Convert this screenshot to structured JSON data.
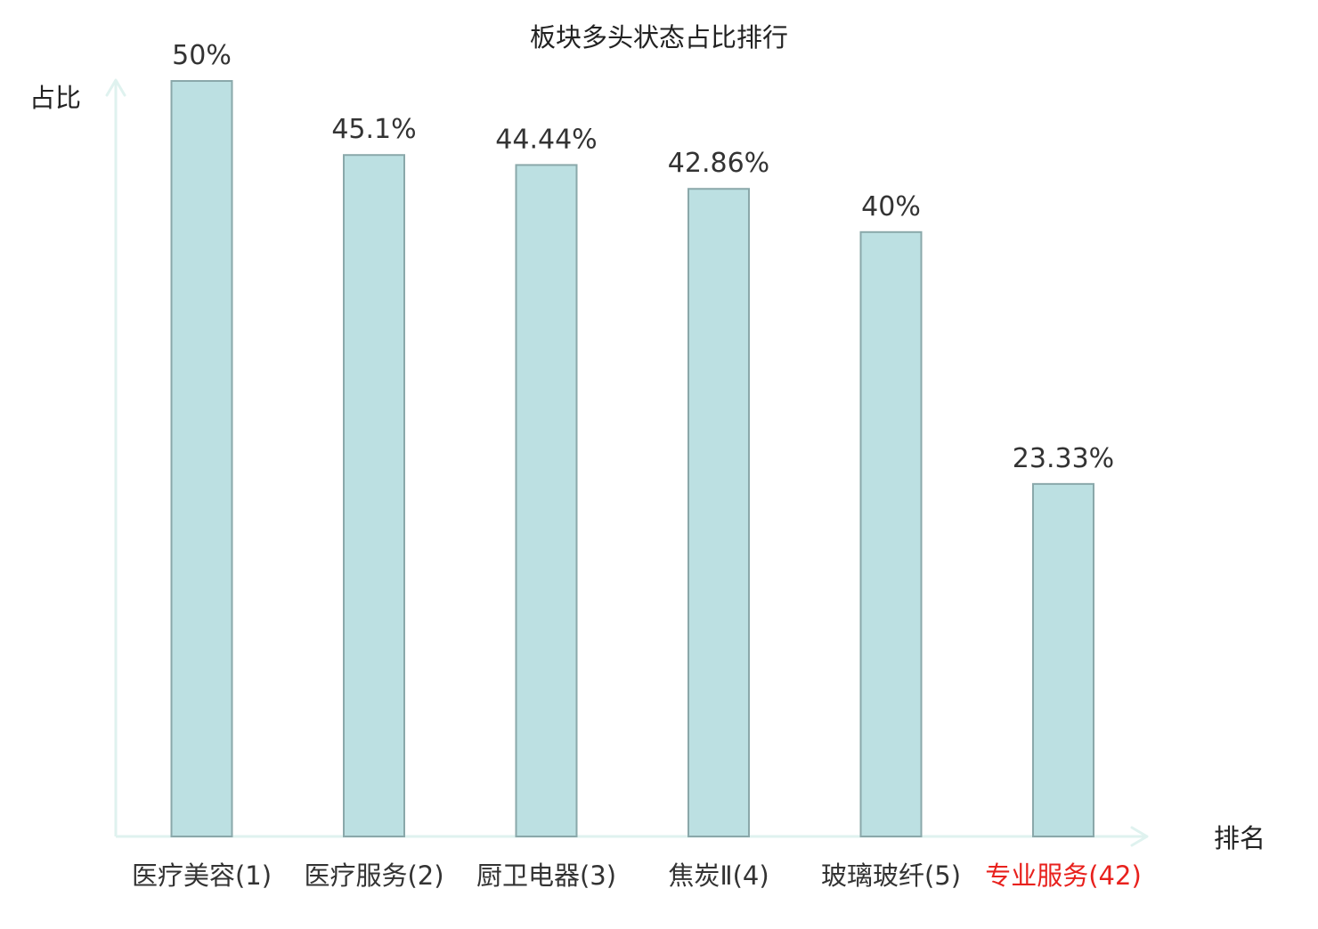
{
  "chart_data": {
    "type": "bar",
    "title": "板块多头状态占比排行",
    "ylabel": "占比",
    "xlabel": "排名",
    "categories": [
      "医疗美容(1)",
      "医疗服务(2)",
      "厨卫电器(3)",
      "焦炭Ⅱ(4)",
      "玻璃玻纤(5)",
      "专业服务(42)"
    ],
    "values": [
      50,
      45.1,
      44.44,
      42.86,
      40,
      23.33
    ],
    "value_labels": [
      "50%",
      "45.1%",
      "44.44%",
      "42.86%",
      "40%",
      "23.33%"
    ],
    "highlight_index": 5,
    "ylim": [
      0,
      50
    ],
    "grid": false,
    "colors": {
      "bar_fill": "#bce0e2",
      "bar_stroke": "#8aa8aa",
      "axis": "#dff2ef",
      "text": "#333333",
      "highlight_text": "#e8211d"
    }
  }
}
